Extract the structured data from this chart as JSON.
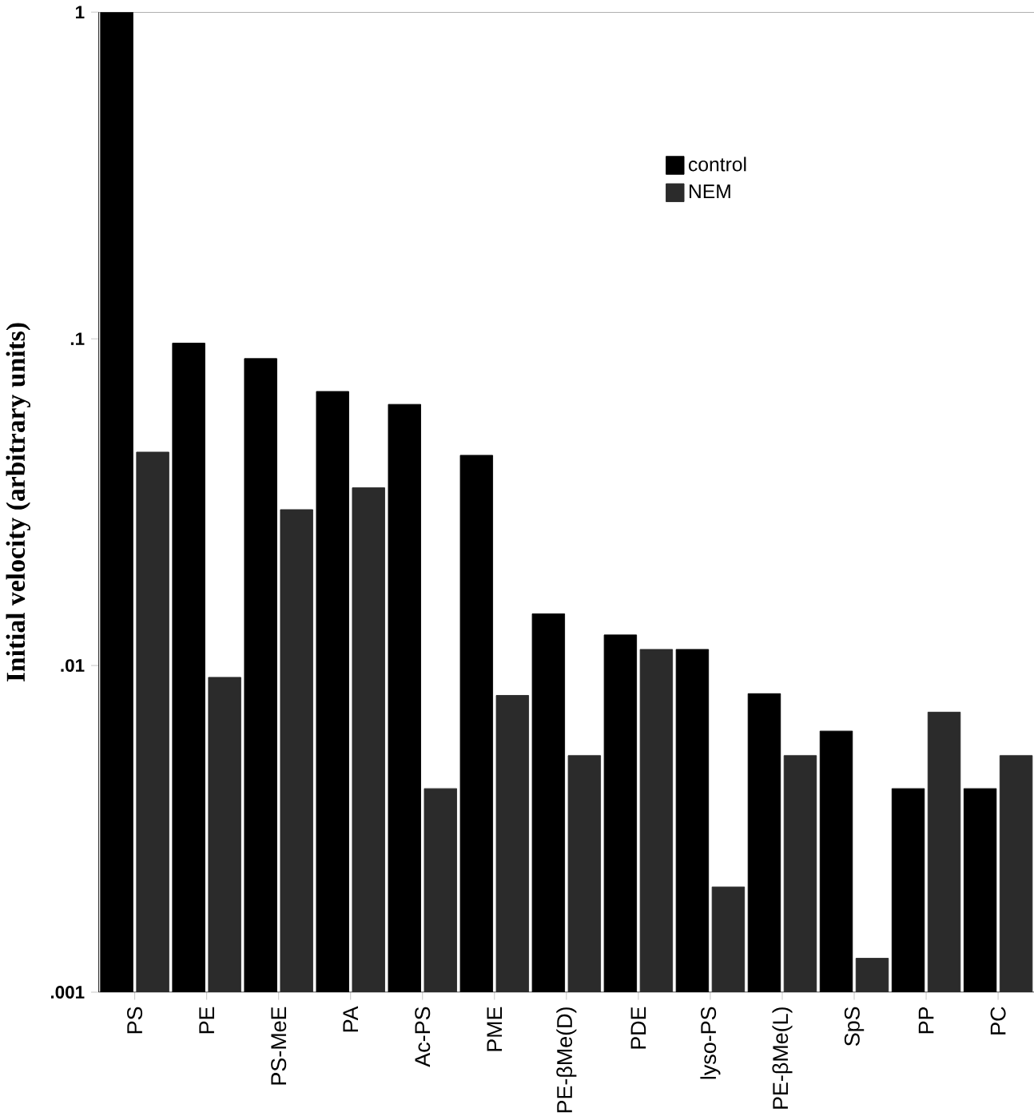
{
  "chart_data": {
    "type": "bar",
    "log": "y",
    "legend": "top right",
    "ylabel": "Initial velocity (arbitrary units)",
    "categories": [
      "PS",
      "PE",
      "PS-MeE",
      "PA",
      "Ac-PS",
      "PME",
      "PE-βMe(D)",
      "PDE",
      "lyso-PS",
      "PE-βMe(L)",
      "SpS",
      "PP",
      "PC"
    ],
    "series": [
      {
        "name": "control",
        "color": "#000000",
        "values": [
          1.0,
          0.097,
          0.087,
          0.069,
          0.063,
          0.044,
          0.0144,
          0.0124,
          0.0112,
          0.0082,
          0.0063,
          0.0042,
          0.0042
        ]
      },
      {
        "name": "NEM",
        "color": "#2b2b2b",
        "values": [
          0.045,
          0.0092,
          0.03,
          0.035,
          0.0042,
          0.0081,
          0.0053,
          0.0112,
          0.0021,
          0.0053,
          0.00127,
          0.0072,
          0.0053
        ]
      }
    ],
    "ylim": [
      0.001,
      1
    ],
    "yticks": [
      {
        "value": 0.001,
        "label": ".001"
      },
      {
        "value": 0.01,
        "label": ".01"
      },
      {
        "value": 0.1,
        "label": ".1"
      },
      {
        "value": 1,
        "label": "1"
      }
    ]
  }
}
